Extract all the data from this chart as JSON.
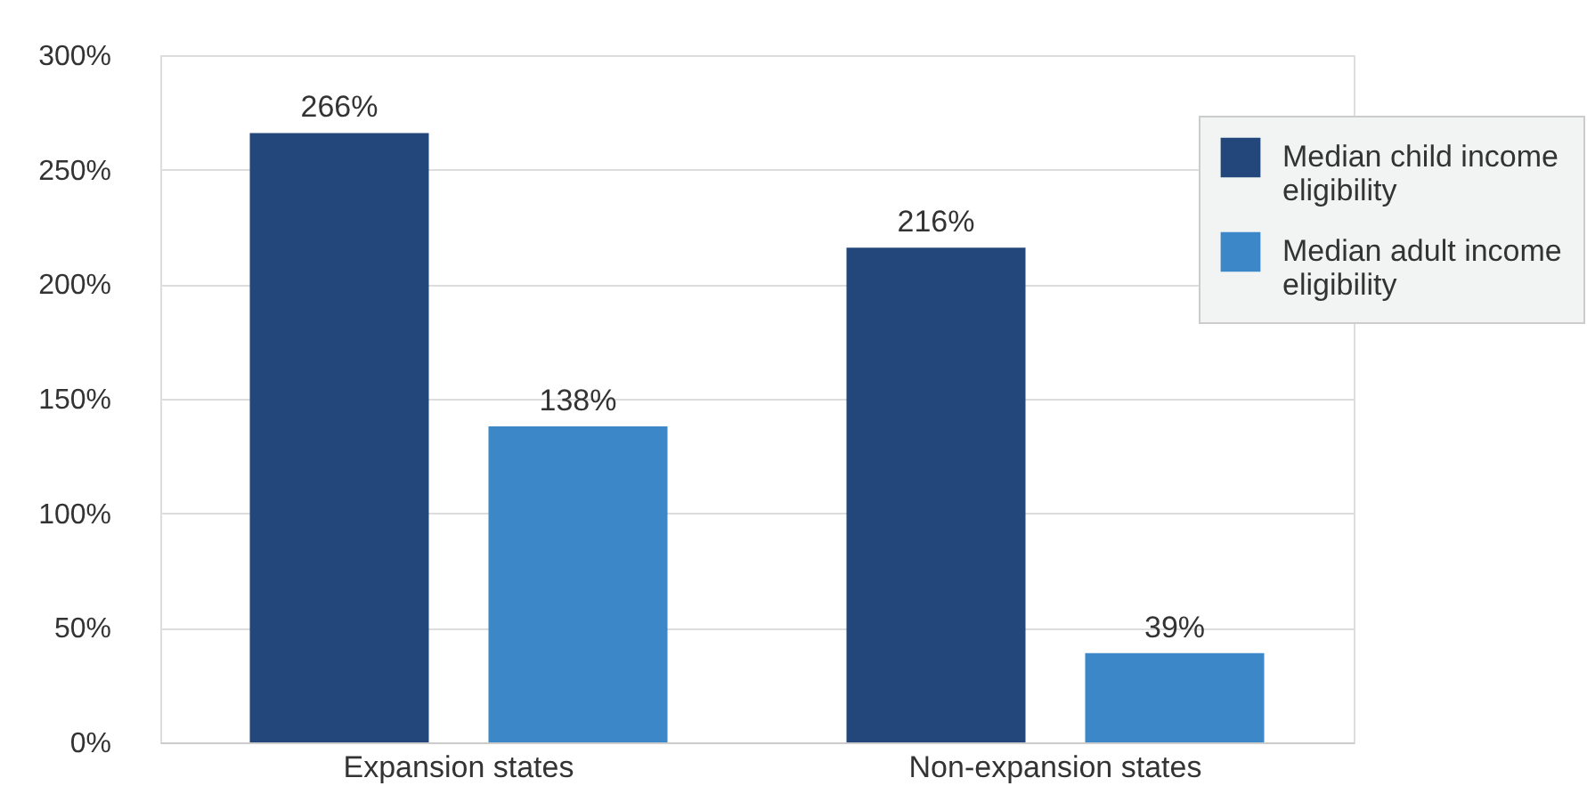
{
  "chart_data": {
    "type": "bar",
    "categories": [
      "Expansion states",
      "Non-expansion states"
    ],
    "series": [
      {
        "name": "Median child income eligibility",
        "color": "#23477a",
        "values": [
          266,
          216
        ]
      },
      {
        "name": "Median adult income eligibility",
        "color": "#3b87c8",
        "values": [
          138,
          39
        ]
      }
    ],
    "ylim": [
      0,
      300
    ],
    "yticks": [
      {
        "value": 0,
        "label": "0%"
      },
      {
        "value": 50,
        "label": "50%"
      },
      {
        "value": 100,
        "label": "100%"
      },
      {
        "value": 150,
        "label": "150%"
      },
      {
        "value": 200,
        "label": "200%"
      },
      {
        "value": 250,
        "label": "250%"
      },
      {
        "value": 300,
        "label": "300%"
      }
    ],
    "value_labels": [
      [
        "266%",
        "216%"
      ],
      [
        "138%",
        "39%"
      ]
    ],
    "grid": "y",
    "legend": "top right"
  }
}
